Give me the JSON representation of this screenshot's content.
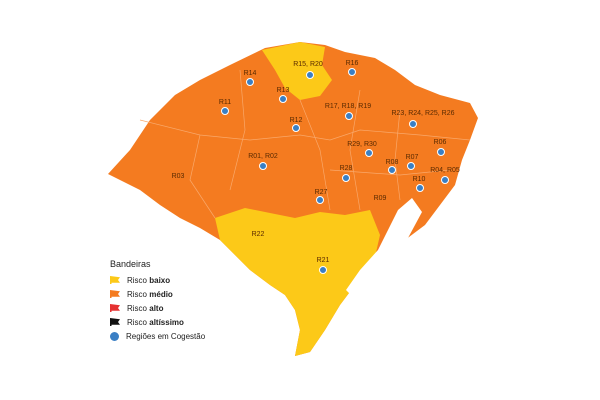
{
  "colors": {
    "baixo": "#fcc918",
    "medio": "#f47b20",
    "alto": "#e53131",
    "altissimo": "#111111",
    "cogestao": "#3a7fc4"
  },
  "legend": {
    "title": "Bandeiras",
    "items": [
      {
        "prefix": "Risco",
        "level": "baixo"
      },
      {
        "prefix": "Risco",
        "level": "médio"
      },
      {
        "prefix": "Risco",
        "level": "alto"
      },
      {
        "prefix": "Risco",
        "level": "altíssimo"
      }
    ],
    "cogestao": "Regiões em Cogestão"
  },
  "regions": [
    {
      "label": "R14",
      "flag": "médio",
      "cogestao": true
    },
    {
      "label": "R15, R20",
      "flag": "baixo",
      "cogestao": true
    },
    {
      "label": "R16",
      "flag": "médio",
      "cogestao": true
    },
    {
      "label": "R13",
      "flag": "médio",
      "cogestao": true
    },
    {
      "label": "R11",
      "flag": "médio",
      "cogestao": true
    },
    {
      "label": "R12",
      "flag": "médio",
      "cogestao": true
    },
    {
      "label": "R17, R18, R19",
      "flag": "médio",
      "cogestao": true
    },
    {
      "label": "R23, R24, R25, R26",
      "flag": "médio",
      "cogestao": true
    },
    {
      "label": "R01, R02",
      "flag": "médio",
      "cogestao": true
    },
    {
      "label": "R29, R30",
      "flag": "médio",
      "cogestao": true
    },
    {
      "label": "R06",
      "flag": "médio",
      "cogestao": true
    },
    {
      "label": "R08",
      "flag": "médio",
      "cogestao": true
    },
    {
      "label": "R07",
      "flag": "médio",
      "cogestao": true
    },
    {
      "label": "R28",
      "flag": "médio",
      "cogestao": true
    },
    {
      "label": "R10",
      "flag": "médio",
      "cogestao": true
    },
    {
      "label": "R04, R05",
      "flag": "médio",
      "cogestao": true
    },
    {
      "label": "R03",
      "flag": "médio",
      "cogestao": false
    },
    {
      "label": "R27",
      "flag": "médio",
      "cogestao": true
    },
    {
      "label": "R09",
      "flag": "médio",
      "cogestao": false
    },
    {
      "label": "R22",
      "flag": "baixo",
      "cogestao": false
    },
    {
      "label": "R21",
      "flag": "baixo",
      "cogestao": true
    }
  ]
}
